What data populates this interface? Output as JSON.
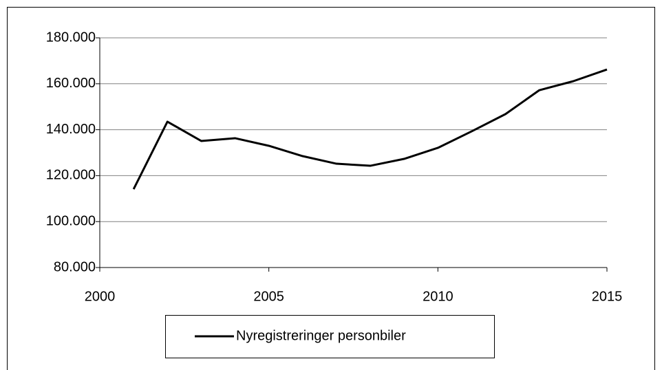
{
  "chart_data": {
    "type": "line",
    "x": [
      2001,
      2002,
      2003,
      2004,
      2005,
      2006,
      2007,
      2008,
      2009,
      2010,
      2011,
      2012,
      2013,
      2014,
      2015
    ],
    "series": [
      {
        "name": "Nyregistreringer personbiler",
        "color": "#000000",
        "values": [
          114100,
          143500,
          135100,
          136300,
          133000,
          128500,
          125200,
          124300,
          127300,
          132100,
          139300,
          146800,
          157200,
          161100,
          166200
        ]
      }
    ],
    "xlim": [
      2000,
      2015
    ],
    "xticks": [
      2000,
      2005,
      2010,
      2015
    ],
    "ylim": [
      80000,
      180000
    ],
    "yticks": [
      {
        "value": 80000,
        "label": "80.000"
      },
      {
        "value": 100000,
        "label": "100.000"
      },
      {
        "value": 120000,
        "label": "120.000"
      },
      {
        "value": 140000,
        "label": "140.000"
      },
      {
        "value": 160000,
        "label": "160.000"
      },
      {
        "value": 180000,
        "label": "180.000"
      }
    ],
    "grid": true,
    "legend": "bottom"
  }
}
